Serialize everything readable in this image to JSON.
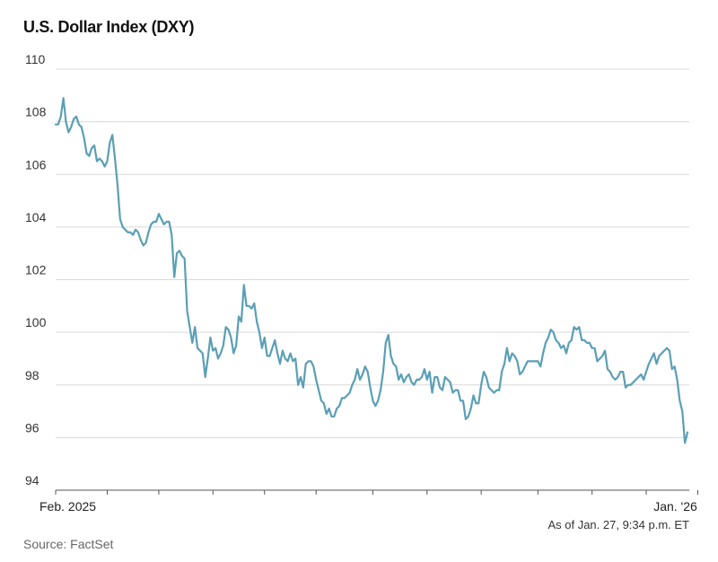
{
  "title": "U.S. Dollar Index (DXY)",
  "as_of": "As of Jan. 27, 9:34 p.m. ET",
  "source": "Source: FactSet",
  "colors": {
    "line": "#5a9fb5",
    "grid": "#d9d9d9",
    "axis": "#555555"
  },
  "chart_data": {
    "type": "line",
    "title": "U.S. Dollar Index (DXY)",
    "xlabel": "",
    "ylabel": "",
    "ylim": [
      94,
      110
    ],
    "yticks": [
      110,
      108,
      106,
      104,
      102,
      100,
      98,
      96,
      94
    ],
    "grid": true,
    "x_tick_labels": [
      {
        "label": "Feb. 2025",
        "index": 0
      },
      {
        "label": "Jan. '26",
        "index": 249
      }
    ],
    "month_tick_indices": [
      0,
      20,
      40,
      61,
      81,
      101,
      123,
      144,
      165,
      187,
      208,
      229,
      249
    ],
    "series": [
      {
        "name": "DXY",
        "values": [
          107.9,
          107.9,
          108.2,
          108.9,
          108.0,
          107.6,
          107.8,
          108.1,
          108.2,
          107.9,
          107.8,
          107.4,
          106.8,
          106.7,
          107.0,
          107.1,
          106.5,
          106.6,
          106.5,
          106.3,
          106.5,
          107.2,
          107.5,
          106.6,
          105.6,
          104.3,
          104.0,
          103.9,
          103.8,
          103.8,
          103.7,
          103.9,
          103.8,
          103.5,
          103.3,
          103.4,
          103.8,
          104.1,
          104.2,
          104.2,
          104.5,
          104.3,
          104.1,
          104.2,
          104.2,
          103.7,
          102.1,
          103.0,
          103.1,
          102.9,
          102.8,
          100.8,
          100.2,
          99.6,
          100.2,
          99.4,
          99.3,
          99.2,
          98.3,
          99.0,
          99.8,
          99.3,
          99.4,
          99.0,
          99.2,
          99.5,
          100.2,
          100.1,
          99.8,
          99.2,
          99.5,
          100.6,
          100.4,
          101.8,
          101.0,
          101.0,
          100.9,
          101.1,
          100.4,
          100.0,
          99.4,
          99.8,
          99.1,
          99.1,
          99.4,
          99.7,
          99.2,
          98.8,
          99.3,
          99.0,
          98.9,
          99.2,
          98.9,
          99.0,
          98.0,
          98.3,
          97.9,
          98.8,
          98.9,
          98.9,
          98.7,
          98.2,
          97.8,
          97.4,
          97.3,
          96.9,
          97.1,
          96.8,
          96.8,
          97.1,
          97.2,
          97.5,
          97.5,
          97.6,
          97.7,
          98.0,
          98.2,
          98.6,
          98.2,
          98.4,
          98.7,
          98.5,
          97.9,
          97.4,
          97.2,
          97.4,
          97.8,
          98.5,
          99.6,
          99.9,
          99.1,
          98.8,
          98.7,
          98.2,
          98.4,
          98.1,
          98.3,
          98.4,
          98.1,
          98.0,
          98.2,
          98.2,
          98.3,
          98.6,
          98.2,
          98.5,
          97.7,
          98.3,
          98.3,
          97.9,
          97.8,
          98.3,
          98.2,
          98.1,
          97.7,
          97.8,
          97.8,
          97.4,
          97.4,
          96.7,
          96.8,
          97.1,
          97.6,
          97.3,
          97.3,
          98.0,
          98.5,
          98.3,
          97.9,
          97.8,
          97.7,
          97.8,
          97.8,
          98.5,
          98.8,
          99.4,
          98.9,
          99.2,
          99.1,
          98.9,
          98.4,
          98.5,
          98.7,
          98.9,
          98.9,
          98.9,
          98.9,
          98.9,
          98.7,
          99.2,
          99.6,
          99.8,
          100.1,
          100.0,
          99.7,
          99.6,
          99.4,
          99.5,
          99.2,
          99.6,
          99.7,
          100.2,
          100.1,
          100.2,
          99.7,
          99.7,
          99.6,
          99.6,
          99.4,
          99.4,
          98.9,
          99.0,
          99.1,
          99.3,
          98.6,
          98.5,
          98.3,
          98.2,
          98.3,
          98.5,
          98.5,
          97.9,
          98.0,
          98.0,
          98.1,
          98.2,
          98.3,
          98.4,
          98.2,
          98.5,
          98.8,
          99.0,
          99.2,
          98.8,
          99.1,
          99.2,
          99.3,
          99.4,
          99.3,
          98.6,
          98.7,
          98.2,
          97.4,
          97.0,
          95.8,
          96.2
        ]
      }
    ]
  }
}
